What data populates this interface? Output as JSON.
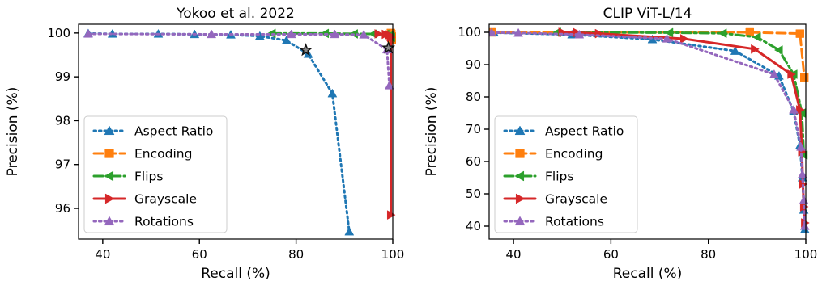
{
  "chart_data": [
    {
      "type": "line",
      "title": "Yokoo et al. 2022",
      "xlabel": "Recall (%)",
      "ylabel": "Precision (%)",
      "xlim": [
        35,
        100
      ],
      "ylim": [
        95.3,
        100.2
      ],
      "xticks": [
        40,
        60,
        80,
        100
      ],
      "yticks": [
        96,
        97,
        98,
        99,
        100
      ],
      "legend_position": "lower-left",
      "star_markers": [
        [
          82,
          99.61
        ],
        [
          99.1,
          99.66
        ]
      ],
      "series": [
        {
          "name": "Aspect Ratio",
          "color": "#1f77b4",
          "linestyle": "dotted",
          "marker": "triangle-up",
          "x": [
            37,
            42,
            51.5,
            59,
            66.5,
            72.5,
            78,
            82.5,
            87.5,
            91
          ],
          "y": [
            99.99,
            99.98,
            99.98,
            99.97,
            99.96,
            99.93,
            99.83,
            99.52,
            98.62,
            95.47
          ]
        },
        {
          "name": "Encoding",
          "color": "#ff7f0e",
          "linestyle": "dashed",
          "marker": "square",
          "x": [
            99.6,
            99.7,
            99.8,
            99.8
          ],
          "y": [
            100.0,
            99.98,
            99.92,
            99.85
          ]
        },
        {
          "name": "Flips",
          "color": "#2ca02c",
          "linestyle": "dashdot",
          "marker": "triangle-left",
          "x": [
            75,
            86,
            92,
            96,
            98.5,
            99.5,
            99.7
          ],
          "y": [
            99.99,
            99.99,
            99.98,
            99.98,
            99.97,
            99.95,
            99.9
          ]
        },
        {
          "name": "Grayscale",
          "color": "#d62728",
          "linestyle": "solid",
          "marker": "triangle-right",
          "x": [
            97,
            98.5,
            99.2,
            99.5,
            99.6,
            99.6
          ],
          "y": [
            99.98,
            99.97,
            99.96,
            99.92,
            99.9,
            95.85
          ]
        },
        {
          "name": "Rotations",
          "color": "#9467bd",
          "linestyle": "dotted",
          "marker": "triangle-up",
          "x": [
            37,
            62.5,
            79,
            88,
            94,
            98.8,
            99.3
          ],
          "y": [
            99.98,
            99.97,
            99.97,
            99.97,
            99.96,
            99.62,
            98.8
          ]
        }
      ]
    },
    {
      "type": "line",
      "title": "CLIP ViT-L/14",
      "xlabel": "Recall (%)",
      "ylabel": "Precision (%)",
      "xlim": [
        35,
        100
      ],
      "ylim": [
        36,
        102.5
      ],
      "xticks": [
        40,
        60,
        80,
        100
      ],
      "yticks": [
        40,
        50,
        60,
        70,
        80,
        90,
        100
      ],
      "legend_position": "lower-left",
      "series": [
        {
          "name": "Aspect Ratio",
          "color": "#1f77b4",
          "linestyle": "dotted",
          "marker": "triangle-up",
          "x": [
            36,
            52,
            68.5,
            85.5,
            94.5,
            97.5,
            98.8,
            99.3,
            99.6,
            99.8
          ],
          "y": [
            99.9,
            99.3,
            97.8,
            94.2,
            86.5,
            75.5,
            65,
            55,
            45,
            39
          ]
        },
        {
          "name": "Encoding",
          "color": "#ff7f0e",
          "linestyle": "dashed",
          "marker": "square",
          "x": [
            35.5,
            88.5,
            98.8,
            99.7
          ],
          "y": [
            100,
            100,
            99.6,
            86
          ]
        },
        {
          "name": "Flips",
          "color": "#2ca02c",
          "linestyle": "dashdot",
          "marker": "triangle-left",
          "x": [
            49,
            72,
            83,
            90,
            94.5,
            97.5,
            99.2,
            99.6
          ],
          "y": [
            100,
            99.9,
            99.7,
            98.5,
            94.5,
            87,
            75,
            62
          ]
        },
        {
          "name": "Grayscale",
          "color": "#d62728",
          "linestyle": "solid",
          "marker": "triangle-right",
          "x": [
            50,
            53,
            57.5,
            75,
            89.5,
            97,
            98.8,
            99.2,
            99.4,
            99.6,
            99.8
          ],
          "y": [
            100,
            99.9,
            99.6,
            98,
            94.8,
            87,
            76,
            63,
            53,
            46,
            41
          ]
        },
        {
          "name": "Rotations",
          "color": "#9467bd",
          "linestyle": "dotted",
          "marker": "triangle-up",
          "x": [
            35.5,
            41,
            53.5,
            71.5,
            93.5,
            97.5,
            99.0,
            99.3,
            99.6,
            99.8
          ],
          "y": [
            99.9,
            99.8,
            99.3,
            98,
            87,
            76,
            64.5,
            56,
            48,
            40
          ]
        }
      ]
    }
  ]
}
